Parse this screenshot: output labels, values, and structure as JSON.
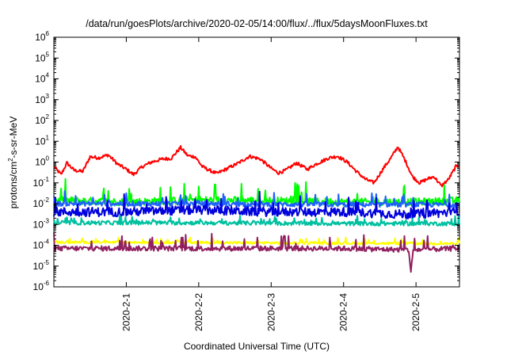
{
  "chart_data": {
    "type": "line",
    "title": "/data/run/goesPlots/archive/2020-02-05/14:00/flux/../flux/5daysMoonFluxes.txt",
    "xlabel": "Coordinated Universal Time (UTC)",
    "ylabel": {
      "prefix": "protons/cm",
      "sup": "2",
      "suffix": "-s-sr-MeV"
    },
    "yscale": "log",
    "ylim": [
      1e-06,
      1000000.0
    ],
    "y_ticks": [
      {
        "base": "10",
        "exp": "-6",
        "v": -6
      },
      {
        "base": "10",
        "exp": "-5",
        "v": -5
      },
      {
        "base": "10",
        "exp": "-4",
        "v": -4
      },
      {
        "base": "10",
        "exp": "-3",
        "v": -3
      },
      {
        "base": "10",
        "exp": "-2",
        "v": -2
      },
      {
        "base": "10",
        "exp": "-1",
        "v": -1
      },
      {
        "base": "10",
        "exp": "0",
        "v": 0
      },
      {
        "base": "10",
        "exp": "1",
        "v": 1
      },
      {
        "base": "10",
        "exp": "2",
        "v": 2
      },
      {
        "base": "10",
        "exp": "3",
        "v": 3
      },
      {
        "base": "10",
        "exp": "4",
        "v": 4
      },
      {
        "base": "10",
        "exp": "5",
        "v": 5
      },
      {
        "base": "10",
        "exp": "6",
        "v": 6
      }
    ],
    "x_range_days": [
      0,
      5.6
    ],
    "x_ticks": [
      {
        "label": "2020-2-1",
        "day": 1
      },
      {
        "label": "2020-2-2",
        "day": 2
      },
      {
        "label": "2020-2-3",
        "day": 3
      },
      {
        "label": "2020-2-4",
        "day": 4
      },
      {
        "label": "2020-2-5",
        "day": 5
      }
    ],
    "grid": false,
    "series": [
      {
        "color": "#ff0000",
        "width": 2,
        "noise": 0.08,
        "spikes": 0,
        "points": [
          [
            0.0,
            0.6
          ],
          [
            0.1,
            0.25
          ],
          [
            0.18,
            0.9
          ],
          [
            0.28,
            0.4
          ],
          [
            0.4,
            0.35
          ],
          [
            0.5,
            1.8
          ],
          [
            0.62,
            1.6
          ],
          [
            0.75,
            2.2
          ],
          [
            0.88,
            0.8
          ],
          [
            1.0,
            0.45
          ],
          [
            1.1,
            0.25
          ],
          [
            1.22,
            0.6
          ],
          [
            1.35,
            1.0
          ],
          [
            1.5,
            1.4
          ],
          [
            1.62,
            1.5
          ],
          [
            1.75,
            5.0
          ],
          [
            1.85,
            2.0
          ],
          [
            1.95,
            1.8
          ],
          [
            2.05,
            0.6
          ],
          [
            2.15,
            0.4
          ],
          [
            2.25,
            0.28
          ],
          [
            2.4,
            0.5
          ],
          [
            2.55,
            0.9
          ],
          [
            2.7,
            1.9
          ],
          [
            2.85,
            1.4
          ],
          [
            3.0,
            0.5
          ],
          [
            3.1,
            0.3
          ],
          [
            3.2,
            0.4
          ],
          [
            3.35,
            0.9
          ],
          [
            3.5,
            0.45
          ],
          [
            3.62,
            0.8
          ],
          [
            3.8,
            1.6
          ],
          [
            3.92,
            1.9
          ],
          [
            4.05,
            1.0
          ],
          [
            4.18,
            0.35
          ],
          [
            4.3,
            0.15
          ],
          [
            4.42,
            0.1
          ],
          [
            4.55,
            0.5
          ],
          [
            4.65,
            1.5
          ],
          [
            4.75,
            5.5
          ],
          [
            4.85,
            1.2
          ],
          [
            4.95,
            0.2
          ],
          [
            5.05,
            0.1
          ],
          [
            5.15,
            0.15
          ],
          [
            5.25,
            0.2
          ],
          [
            5.35,
            0.07
          ],
          [
            5.45,
            0.15
          ],
          [
            5.55,
            0.6
          ],
          [
            5.6,
            0.7
          ]
        ]
      },
      {
        "color": "#00ff00",
        "width": 2,
        "noise": 0.18,
        "spikes": 0.6,
        "points": [
          [
            0,
            0.015
          ],
          [
            1,
            0.012
          ],
          [
            2,
            0.015
          ],
          [
            3,
            0.014
          ],
          [
            4,
            0.012
          ],
          [
            5,
            0.012
          ],
          [
            5.6,
            0.014
          ]
        ]
      },
      {
        "color": "#2060ff",
        "width": 2,
        "noise": 0.12,
        "spikes": 0.35,
        "points": [
          [
            0,
            0.01
          ],
          [
            2,
            0.01
          ],
          [
            4,
            0.009
          ],
          [
            5.6,
            0.009
          ]
        ]
      },
      {
        "color": "#0000dd",
        "width": 2,
        "noise": 0.22,
        "spikes": 0.5,
        "points": [
          [
            0,
            0.004
          ],
          [
            1,
            0.004
          ],
          [
            2,
            0.005
          ],
          [
            3,
            0.004
          ],
          [
            4,
            0.004
          ],
          [
            4.9,
            0.003
          ],
          [
            5.6,
            0.004
          ]
        ]
      },
      {
        "color": "#00c0a0",
        "width": 2,
        "noise": 0.1,
        "spikes": 0.2,
        "points": [
          [
            0,
            0.0012
          ],
          [
            2,
            0.0012
          ],
          [
            4,
            0.0011
          ],
          [
            5.6,
            0.0011
          ]
        ]
      },
      {
        "color": "#ffff00",
        "width": 2,
        "noise": 0.06,
        "spikes": 0.15,
        "points": [
          [
            0,
            0.00014
          ],
          [
            3,
            0.00013
          ],
          [
            5.6,
            0.00012
          ]
        ]
      },
      {
        "color": "#902060",
        "width": 2,
        "noise": 0.12,
        "spikes": 0.5,
        "points": [
          [
            0,
            7e-05
          ],
          [
            2,
            7e-05
          ],
          [
            4,
            7e-05
          ],
          [
            4.9,
            6e-05
          ],
          [
            4.93,
            5e-06
          ],
          [
            4.96,
            6e-05
          ],
          [
            5.6,
            7e-05
          ]
        ]
      }
    ]
  }
}
